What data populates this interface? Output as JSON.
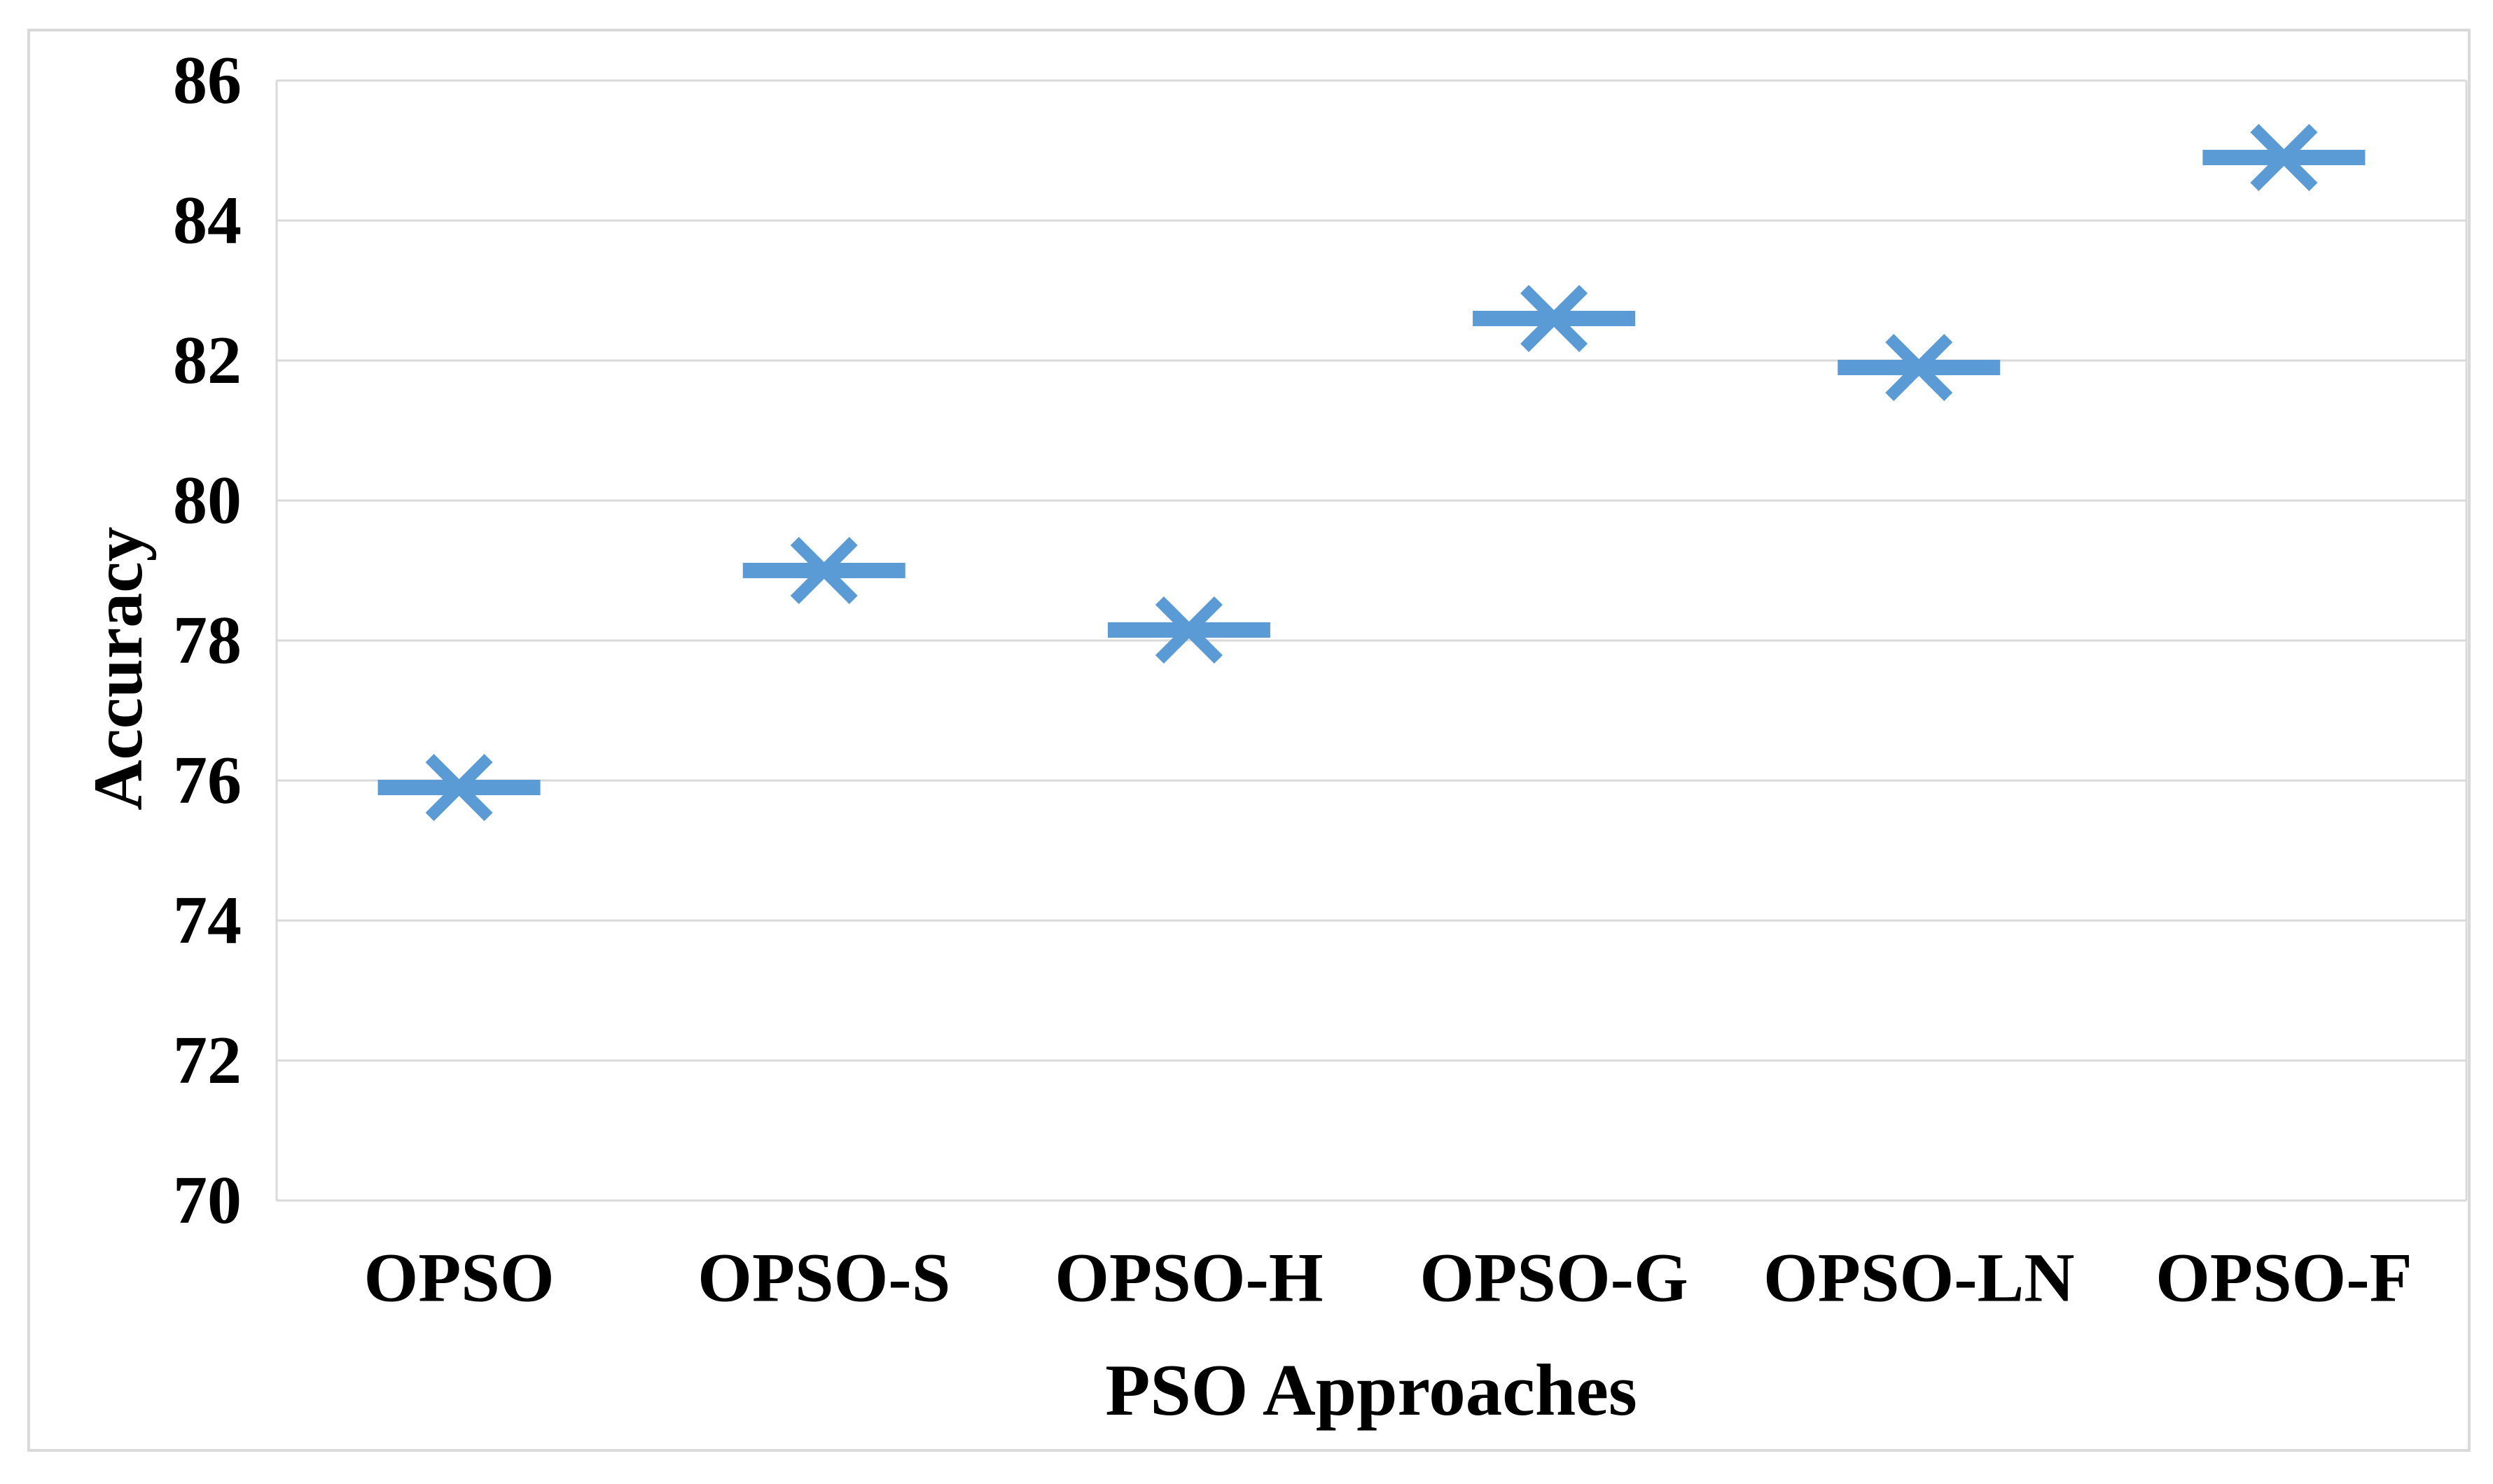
{
  "chart_data": {
    "type": "scatter",
    "title": "",
    "xlabel": "PSO Approaches",
    "ylabel": "Accuracy",
    "categories": [
      "OPSO",
      "OPSO-S",
      "OPSO-H",
      "OPSO-G",
      "OPSO-LN",
      "OPSO-F"
    ],
    "series": [
      {
        "name": "Accuracy",
        "values": [
          75.9,
          79.0,
          78.15,
          82.6,
          81.9,
          84.9
        ]
      }
    ],
    "ylim": [
      70,
      86
    ],
    "ytick_interval": 2,
    "yticks": [
      86,
      84,
      82,
      80,
      78,
      76,
      74,
      72,
      70
    ],
    "grid": "horizontal-only",
    "legend": "none",
    "marker_shape": "x-cross-with-horizontal-dash",
    "colors": {
      "marker": "#5B9BD5",
      "gridline": "#D9D9D9",
      "frame": "#D9D9D9",
      "text": "#000000",
      "background": "#FFFFFF"
    }
  }
}
